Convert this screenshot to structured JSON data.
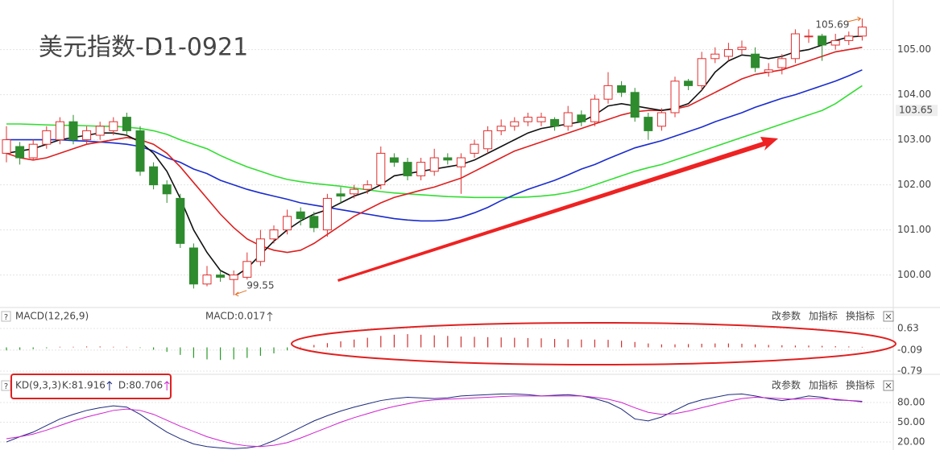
{
  "chart_data": [
    {
      "type": "candlestick",
      "title": "美元指数-D1-0921",
      "up_color": "#e03030",
      "down_color": "#2e8b2e",
      "ylim": [
        99.35,
        106.1
      ],
      "yticks": [
        {
          "value": 100,
          "label": "100.00"
        },
        {
          "value": 101,
          "label": "101.00"
        },
        {
          "value": 102,
          "label": "102.00"
        },
        {
          "value": 103,
          "label": "103.00"
        },
        {
          "value": 104,
          "label": "104.00"
        },
        {
          "value": 105,
          "label": "105.00"
        }
      ],
      "price_tag": 103.65,
      "open": [
        102.7,
        102.85,
        102.6,
        102.9,
        103.0,
        103.4,
        103.0,
        103.1,
        103.2,
        103.5,
        103.2,
        102.4,
        102.0,
        101.7,
        100.6,
        99.8,
        100.0,
        99.9,
        99.95,
        100.3,
        100.8,
        101.0,
        101.4,
        101.3,
        101.0,
        101.8,
        101.8,
        101.9,
        102.0,
        102.6,
        102.5,
        102.2,
        102.3,
        102.6,
        102.4,
        102.7,
        102.8,
        103.2,
        103.3,
        103.4,
        103.4,
        103.45,
        103.3,
        103.55,
        103.4,
        103.9,
        104.2,
        104.05,
        103.5,
        103.3,
        103.6,
        104.3,
        104.2,
        104.8,
        104.85,
        105.0,
        104.9,
        104.5,
        104.6,
        104.8,
        105.3,
        105.3,
        105.1,
        105.2,
        105.3
      ],
      "high": [
        103.3,
        102.95,
        103.0,
        103.3,
        103.5,
        103.55,
        103.3,
        103.4,
        103.5,
        103.6,
        103.3,
        102.5,
        102.1,
        101.8,
        100.7,
        100.2,
        100.1,
        100.1,
        100.5,
        101.0,
        101.1,
        101.45,
        101.5,
        101.4,
        101.8,
        101.95,
        102.0,
        102.1,
        102.85,
        102.7,
        102.6,
        102.6,
        102.8,
        102.7,
        102.7,
        103.0,
        103.3,
        103.45,
        103.5,
        103.6,
        103.6,
        103.5,
        103.75,
        103.65,
        104.0,
        104.5,
        104.3,
        104.15,
        103.6,
        103.7,
        104.4,
        104.35,
        104.95,
        105.05,
        105.15,
        105.2,
        105.05,
        104.7,
        104.9,
        105.45,
        105.45,
        105.35,
        105.35,
        105.4,
        105.69
      ],
      "low": [
        102.5,
        102.45,
        102.55,
        102.8,
        102.9,
        102.9,
        102.9,
        103.0,
        103.1,
        103.1,
        102.2,
        101.9,
        101.6,
        100.6,
        99.7,
        99.75,
        99.85,
        99.55,
        99.9,
        100.2,
        100.7,
        100.9,
        101.1,
        100.95,
        100.85,
        101.6,
        101.7,
        101.8,
        101.9,
        102.4,
        102.1,
        102.1,
        102.2,
        102.45,
        101.8,
        102.6,
        102.7,
        103.1,
        103.2,
        103.3,
        103.3,
        103.2,
        103.2,
        103.3,
        103.3,
        103.8,
        103.95,
        103.4,
        103.0,
        103.2,
        103.5,
        104.1,
        104.1,
        104.7,
        104.75,
        104.9,
        104.5,
        104.4,
        104.45,
        104.7,
        105.15,
        104.75,
        105.0,
        105.1,
        105.2
      ],
      "close": [
        103.0,
        102.6,
        102.9,
        103.2,
        103.4,
        103.0,
        103.2,
        103.3,
        103.4,
        103.2,
        102.3,
        102.0,
        101.8,
        100.7,
        99.8,
        100.0,
        99.95,
        100.0,
        100.3,
        100.8,
        101.0,
        101.3,
        101.25,
        101.05,
        101.7,
        101.75,
        101.9,
        102.0,
        102.7,
        102.5,
        102.2,
        102.5,
        102.6,
        102.55,
        102.6,
        102.9,
        103.2,
        103.3,
        103.4,
        103.5,
        103.5,
        103.3,
        103.6,
        103.4,
        103.9,
        104.2,
        104.05,
        103.5,
        103.2,
        103.6,
        104.3,
        104.2,
        104.8,
        104.9,
        105.0,
        105.05,
        104.6,
        104.55,
        104.8,
        105.35,
        105.3,
        105.1,
        105.2,
        105.3,
        105.5
      ],
      "lines": [
        {
          "color": "#33dd33",
          "values": [
            103.35,
            103.35,
            103.34,
            103.33,
            103.32,
            103.32,
            103.31,
            103.3,
            103.3,
            103.28,
            103.25,
            103.2,
            103.12,
            103.0,
            102.9,
            102.8,
            102.65,
            102.52,
            102.4,
            102.3,
            102.2,
            102.12,
            102.07,
            102.03,
            102.0,
            101.97,
            101.93,
            101.89,
            101.85,
            101.82,
            101.8,
            101.78,
            101.76,
            101.74,
            101.73,
            101.72,
            101.72,
            101.72,
            101.72,
            101.73,
            101.75,
            101.78,
            101.83,
            101.9,
            102.0,
            102.1,
            102.2,
            102.3,
            102.38,
            102.45,
            102.55,
            102.65,
            102.75,
            102.85,
            102.95,
            103.05,
            103.15,
            103.25,
            103.35,
            103.45,
            103.55,
            103.65,
            103.8,
            104.0,
            104.2
          ]
        },
        {
          "color": "#1a2ccc",
          "values": [
            103.0,
            103.0,
            103.0,
            103.0,
            103.0,
            102.98,
            102.97,
            102.95,
            102.93,
            102.9,
            102.85,
            102.75,
            102.6,
            102.5,
            102.35,
            102.25,
            102.1,
            102.0,
            101.9,
            101.82,
            101.75,
            101.68,
            101.6,
            101.55,
            101.5,
            101.45,
            101.4,
            101.35,
            101.3,
            101.25,
            101.22,
            101.2,
            101.2,
            101.22,
            101.28,
            101.38,
            101.5,
            101.65,
            101.78,
            101.9,
            102.0,
            102.1,
            102.22,
            102.35,
            102.45,
            102.58,
            102.7,
            102.82,
            102.9,
            102.98,
            103.08,
            103.18,
            103.28,
            103.4,
            103.5,
            103.6,
            103.72,
            103.82,
            103.92,
            104.0,
            104.1,
            104.2,
            104.3,
            104.42,
            104.55
          ]
        },
        {
          "color": "#dd1f1f",
          "values": [
            102.7,
            102.6,
            102.55,
            102.6,
            102.7,
            102.8,
            102.9,
            102.95,
            103.0,
            103.05,
            103.0,
            102.9,
            102.7,
            102.4,
            102.05,
            101.7,
            101.35,
            101.05,
            100.8,
            100.65,
            100.55,
            100.5,
            100.55,
            100.7,
            100.9,
            101.1,
            101.3,
            101.45,
            101.6,
            101.72,
            101.8,
            101.88,
            101.95,
            102.05,
            102.15,
            102.3,
            102.45,
            102.6,
            102.75,
            102.85,
            102.95,
            103.05,
            103.15,
            103.25,
            103.35,
            103.45,
            103.55,
            103.62,
            103.65,
            103.65,
            103.68,
            103.75,
            103.9,
            104.05,
            104.2,
            104.35,
            104.45,
            104.5,
            104.55,
            104.65,
            104.75,
            104.85,
            104.95,
            105.0,
            105.05
          ]
        },
        {
          "color": "#111111",
          "values": [
            102.7,
            102.75,
            102.8,
            102.9,
            103.0,
            103.05,
            103.1,
            103.15,
            103.15,
            103.1,
            102.95,
            102.7,
            102.3,
            101.7,
            101.0,
            100.5,
            100.1,
            99.95,
            100.15,
            100.45,
            100.75,
            101.0,
            101.2,
            101.35,
            101.45,
            101.6,
            101.75,
            101.85,
            102.0,
            102.2,
            102.25,
            102.3,
            102.35,
            102.4,
            102.45,
            102.55,
            102.7,
            102.85,
            103.0,
            103.15,
            103.25,
            103.3,
            103.35,
            103.4,
            103.55,
            103.75,
            103.8,
            103.75,
            103.7,
            103.65,
            103.7,
            103.8,
            104.1,
            104.5,
            104.75,
            104.88,
            104.85,
            104.8,
            104.85,
            104.95,
            105.0,
            105.1,
            105.2,
            105.28,
            105.3
          ]
        }
      ]
    },
    {
      "type": "bar",
      "name": "MACD(12,26,9)",
      "current_label": "MACD:0.017",
      "help": "?",
      "buttons": [
        "改参数",
        "加指标",
        "换指标"
      ],
      "up_color": "#d03030",
      "down_color": "#2a9a2a",
      "ylim": [
        -1.03,
        0.95
      ],
      "yticks": [
        0.63,
        -0.09,
        -0.79
      ],
      "values": [
        -0.1,
        -0.08,
        -0.06,
        -0.03,
        0.02,
        0.02,
        0.03,
        0.03,
        0.02,
        0.02,
        -0.02,
        -0.08,
        -0.15,
        -0.25,
        -0.35,
        -0.4,
        -0.42,
        -0.4,
        -0.35,
        -0.28,
        -0.2,
        -0.1,
        0.02,
        0.08,
        0.14,
        0.2,
        0.26,
        0.32,
        0.38,
        0.42,
        0.44,
        0.42,
        0.4,
        0.38,
        0.36,
        0.35,
        0.34,
        0.33,
        0.32,
        0.31,
        0.3,
        0.28,
        0.27,
        0.26,
        0.26,
        0.25,
        0.22,
        0.18,
        0.13,
        0.1,
        0.1,
        0.11,
        0.12,
        0.13,
        0.13,
        0.12,
        0.1,
        0.08,
        0.07,
        0.06,
        0.06,
        0.05,
        0.04,
        0.03,
        0.017
      ]
    },
    {
      "type": "line",
      "name": "KD(9,3,3)",
      "help": "?",
      "buttons": [
        "改参数",
        "加指标",
        "换指标"
      ],
      "ylim": [
        7.8,
        94.7
      ],
      "yticks": [
        {
          "value": 80,
          "label": "80.00"
        },
        {
          "value": 50,
          "label": "50.00"
        },
        {
          "value": 20,
          "label": "20.00"
        }
      ],
      "series": [
        {
          "name": "K:81.916",
          "color": "#1c2a7a",
          "values": [
            20,
            28,
            35,
            45,
            55,
            62,
            68,
            72,
            75,
            73,
            62,
            48,
            35,
            25,
            17,
            13,
            11,
            10,
            11,
            14,
            22,
            32,
            42,
            52,
            60,
            67,
            73,
            78,
            83,
            86,
            88,
            87,
            86,
            87,
            90,
            91,
            92,
            93,
            93,
            92,
            90,
            91,
            92,
            90,
            86,
            80,
            70,
            55,
            52,
            58,
            68,
            78,
            84,
            88,
            92,
            93,
            90,
            86,
            83,
            86,
            90,
            88,
            84,
            83,
            81.916
          ]
        },
        {
          "name": "D:80.706",
          "color": "#d020d0",
          "values": [
            25,
            28,
            32,
            38,
            45,
            52,
            58,
            63,
            68,
            70,
            68,
            62,
            53,
            44,
            36,
            28,
            22,
            17,
            14,
            13,
            15,
            19,
            26,
            34,
            42,
            50,
            57,
            63,
            69,
            74,
            78,
            82,
            84,
            85,
            86,
            87,
            88,
            89,
            90,
            90,
            90,
            90,
            90,
            90,
            88,
            85,
            80,
            72,
            65,
            62,
            63,
            67,
            72,
            77,
            82,
            86,
            88,
            87,
            86,
            85,
            86,
            86,
            85,
            83,
            80.706
          ]
        }
      ]
    }
  ]
}
